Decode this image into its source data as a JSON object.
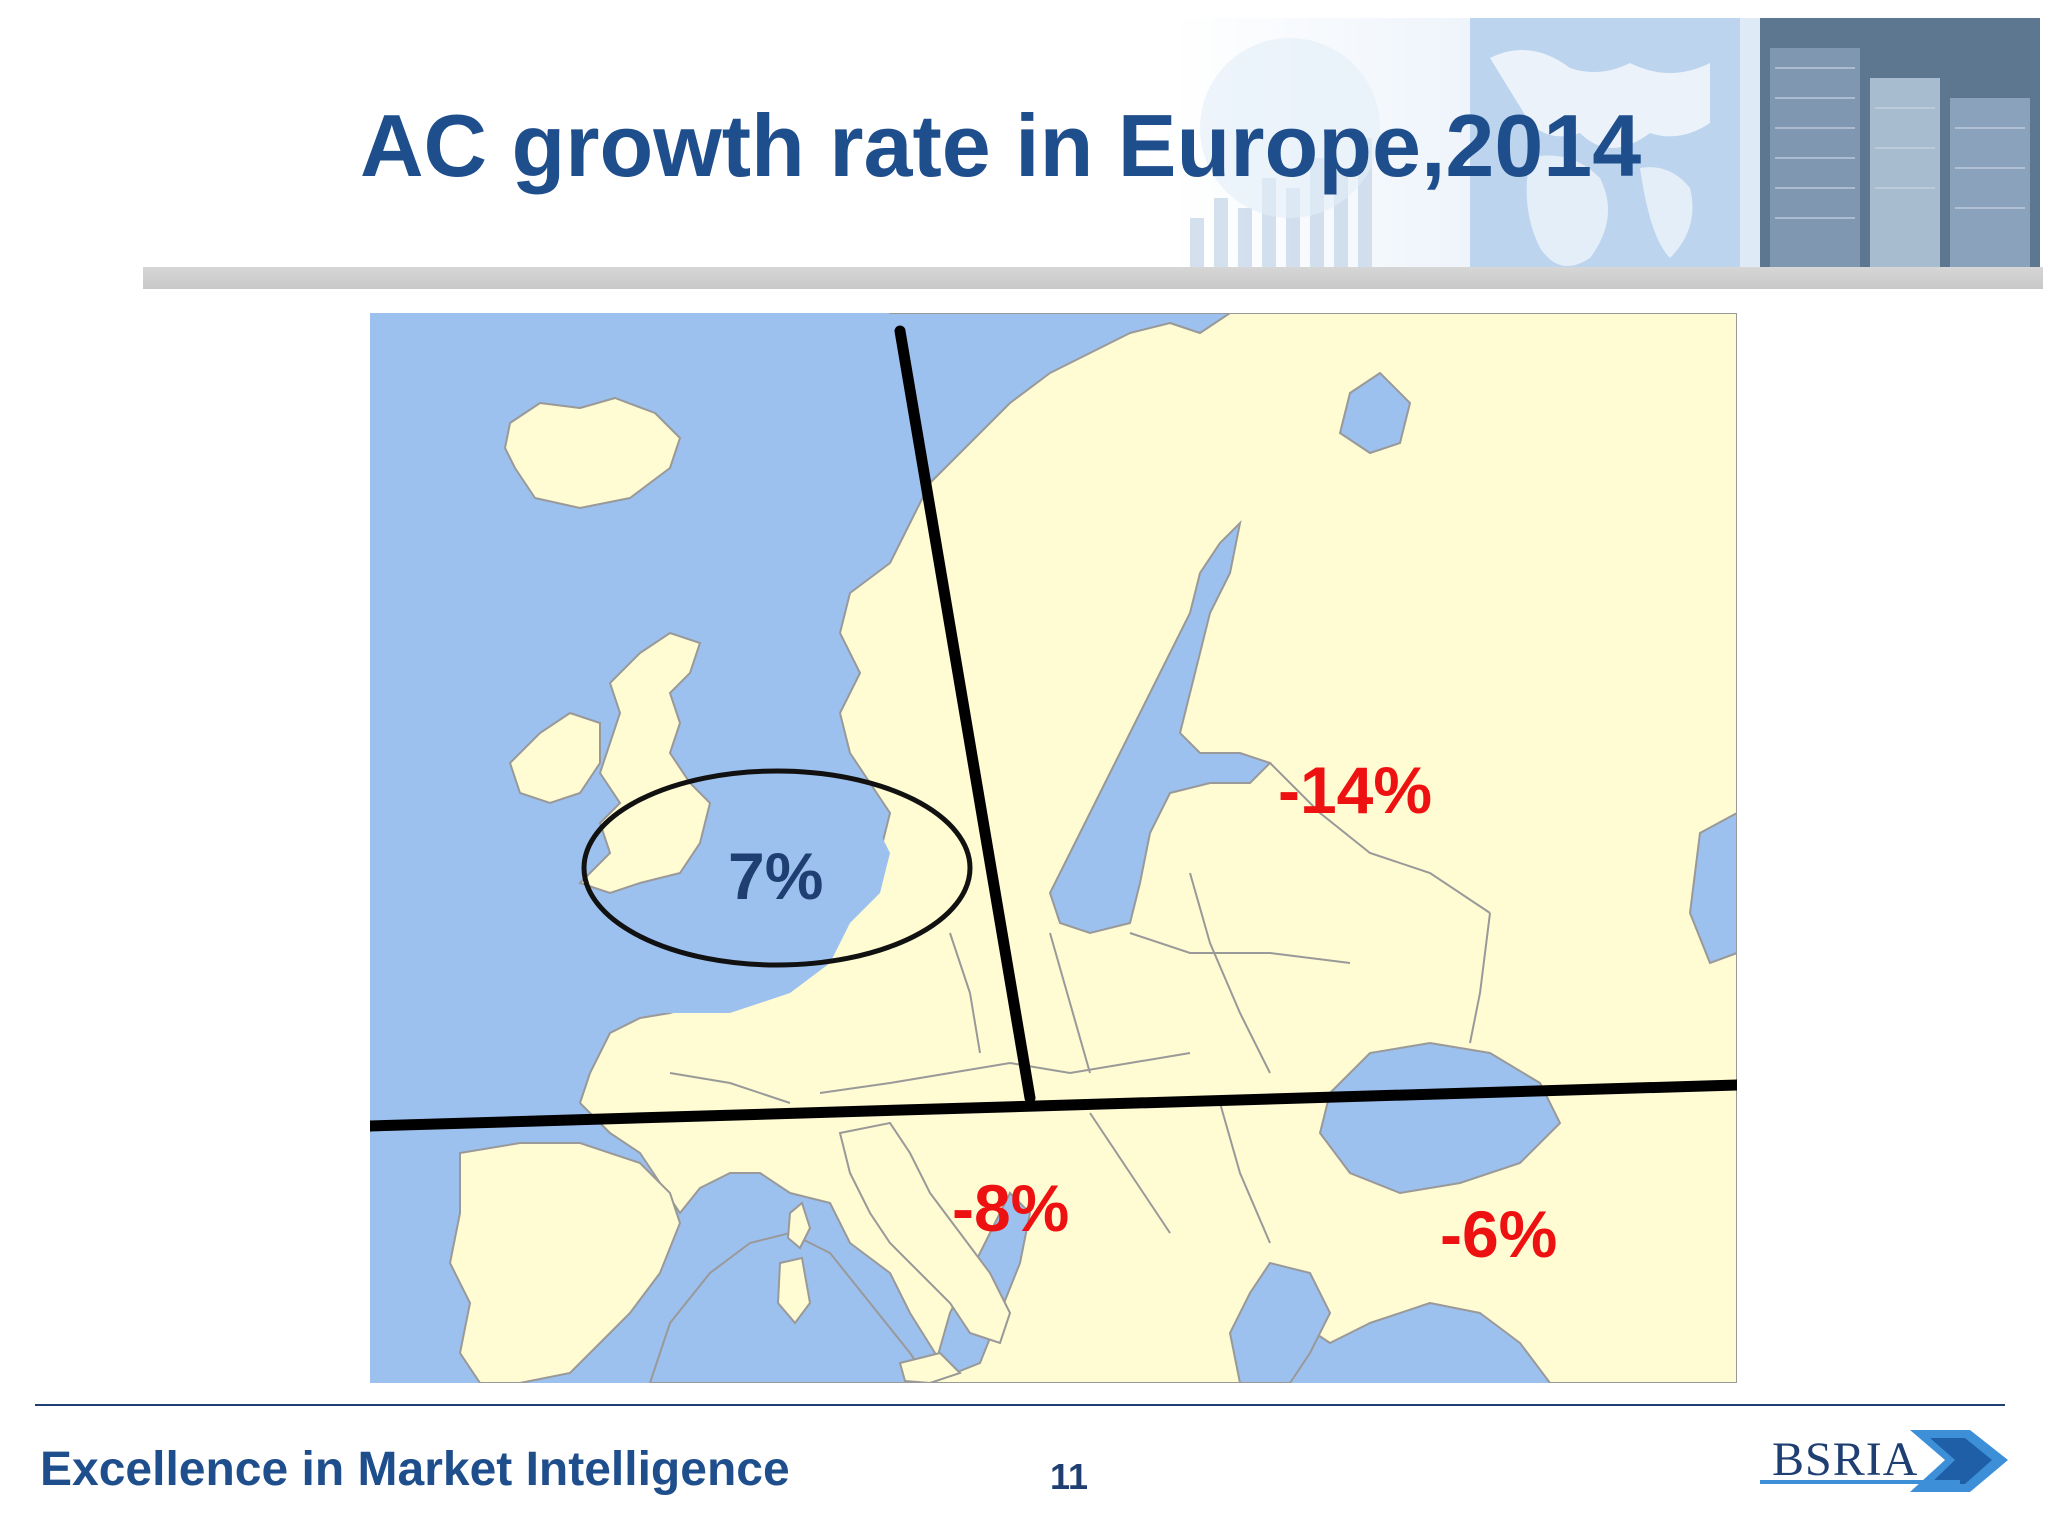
{
  "title": "AC growth rate in Europe,2014",
  "map": {
    "colors": {
      "sea": "#9dc1ee",
      "land": "#fffbd2",
      "border": "#999999",
      "divider": "#000000"
    },
    "regions": [
      {
        "id": "uk",
        "label": "7%",
        "value": 7
      },
      {
        "id": "north-east",
        "label": "-14%",
        "value": -14
      },
      {
        "id": "south-west",
        "label": "-8%",
        "value": -8
      },
      {
        "id": "south-east",
        "label": "-6%",
        "value": -6
      }
    ]
  },
  "footer": {
    "tagline": "Excellence in Market Intelligence",
    "page_number": "11",
    "logo_text": "BSRIA"
  }
}
